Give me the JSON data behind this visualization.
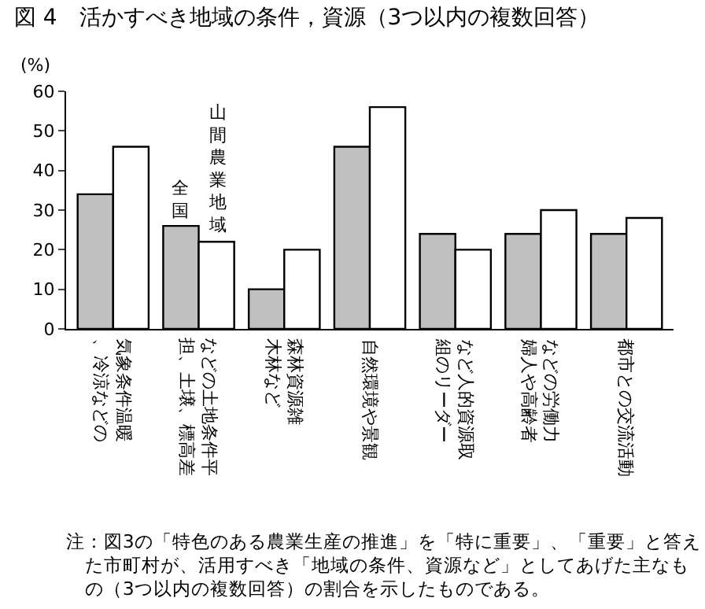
{
  "chart_data": {
    "type": "bar",
    "title": "図 4　活かすべき地域の条件，資源（3つ以内の複数回答）",
    "ylabel": "(%)",
    "categories": [
      "気象条件温暖、冷涼などの",
      "などの土地条件平担、土壌、標高差",
      "森林資源雑木林など",
      "自然環境や景観",
      "など人的資源取組のリーダー",
      "などの労働力婦人や高齢者",
      "都市との交流活動"
    ],
    "series": [
      {
        "name": "全国",
        "color": "#c0c0c0",
        "values": [
          34,
          26,
          10,
          46,
          24,
          24,
          24
        ]
      },
      {
        "name": "山間農業地域",
        "color": "#ffffff",
        "values": [
          46,
          22,
          20,
          56,
          20,
          30,
          28
        ]
      }
    ],
    "ylim": [
      0,
      60
    ],
    "yticks": [
      0,
      10,
      20,
      30,
      40,
      50,
      60
    ],
    "legend": false,
    "annotations": [
      "注：図3の「特色のある農業生産の推進」を「特に重要」、「重要」と答えた市町村が、活用すべき「地域の条件、資源など」としてあげた主なもの（3つ以内の複数回答）の割合を示したものである。"
    ]
  }
}
